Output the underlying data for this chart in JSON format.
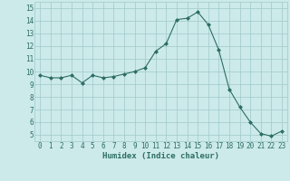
{
  "x": [
    0,
    1,
    2,
    3,
    4,
    5,
    6,
    7,
    8,
    9,
    10,
    11,
    12,
    13,
    14,
    15,
    16,
    17,
    18,
    19,
    20,
    21,
    22,
    23
  ],
  "y": [
    9.7,
    9.5,
    9.5,
    9.7,
    9.1,
    9.7,
    9.5,
    9.6,
    9.8,
    10.0,
    10.3,
    11.6,
    12.2,
    14.1,
    14.2,
    14.7,
    13.7,
    11.7,
    8.6,
    7.2,
    6.0,
    5.1,
    4.9,
    5.3
  ],
  "line_color": "#2d6e63",
  "marker": "D",
  "marker_size": 2.0,
  "bg_color": "#cceaea",
  "grid_color": "#a0c8c8",
  "xlabel": "Humidex (Indice chaleur)",
  "ylim": [
    4.5,
    15.5
  ],
  "xlim": [
    -0.5,
    23.5
  ],
  "yticks": [
    5,
    6,
    7,
    8,
    9,
    10,
    11,
    12,
    13,
    14,
    15
  ],
  "xticks": [
    0,
    1,
    2,
    3,
    4,
    5,
    6,
    7,
    8,
    9,
    10,
    11,
    12,
    13,
    14,
    15,
    16,
    17,
    18,
    19,
    20,
    21,
    22,
    23
  ],
  "tick_fontsize": 5.5,
  "xlabel_fontsize": 6.5
}
